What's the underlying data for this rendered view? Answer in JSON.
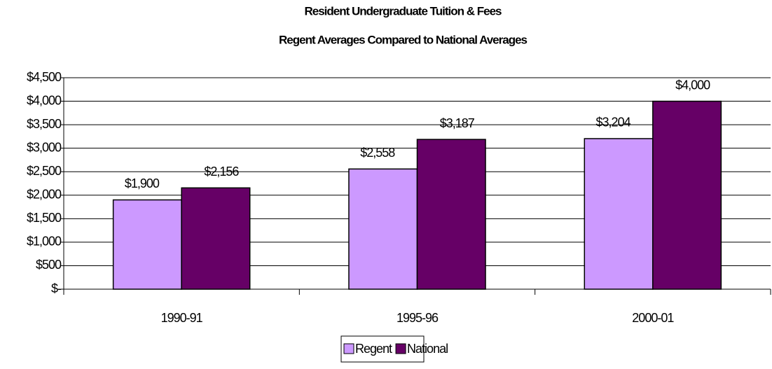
{
  "chart_data": {
    "type": "bar",
    "title": "Resident Undergraduate Tuition & Fees",
    "subtitle": "Regent Averages Compared to National Averages",
    "categories": [
      "1990-91",
      "1995-96",
      "2000-01"
    ],
    "series": [
      {
        "name": "Regent",
        "color": "#cc99ff",
        "values": [
          1900,
          2558,
          3204
        ],
        "value_labels": [
          "$1,900",
          "$2,558",
          "$3,204"
        ]
      },
      {
        "name": "National",
        "color": "#660066",
        "values": [
          2156,
          3187,
          4000
        ],
        "value_labels": [
          "$2,156",
          "$3,187",
          "$4,000"
        ]
      }
    ],
    "ylim": [
      0,
      4500
    ],
    "yticks": [
      {
        "value": 0,
        "label": "$-"
      },
      {
        "value": 500,
        "label": "$500"
      },
      {
        "value": 1000,
        "label": "$1,000"
      },
      {
        "value": 1500,
        "label": "$1,500"
      },
      {
        "value": 2000,
        "label": "$2,000"
      },
      {
        "value": 2500,
        "label": "$2,500"
      },
      {
        "value": 3000,
        "label": "$3,000"
      },
      {
        "value": 3500,
        "label": "$3,500"
      },
      {
        "value": 4000,
        "label": "$4,000"
      },
      {
        "value": 4500,
        "label": "$4,500"
      }
    ],
    "grid": true,
    "legend": "bottom"
  }
}
